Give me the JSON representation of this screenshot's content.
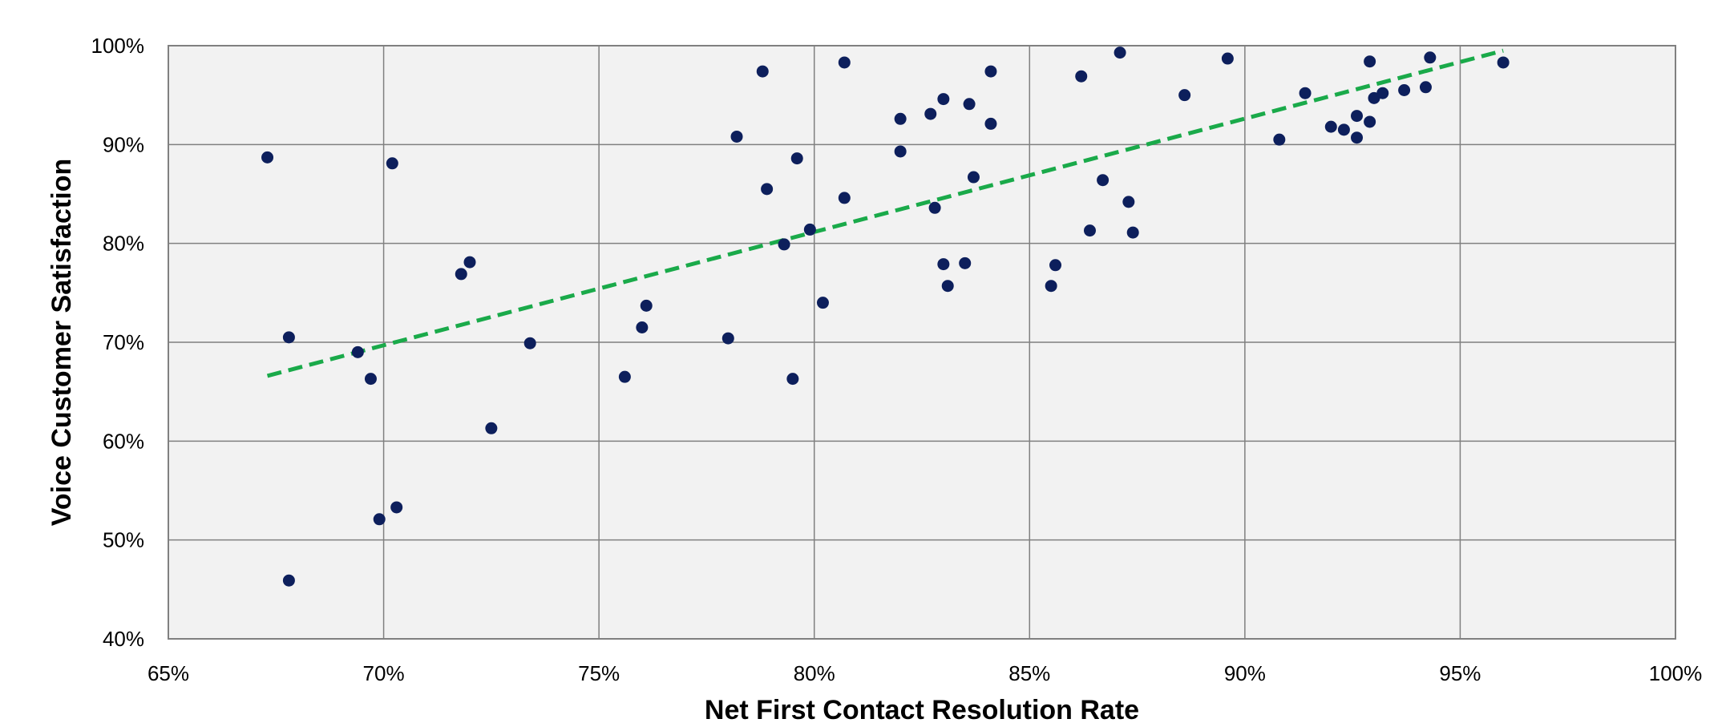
{
  "chart_data": {
    "type": "scatter",
    "title": "",
    "xlabel": "Net First Contact Resolution Rate",
    "ylabel": "Voice Customer Satisfaction",
    "xlim": [
      65,
      100
    ],
    "ylim": [
      40,
      100
    ],
    "x_ticks": [
      65,
      70,
      75,
      80,
      85,
      90,
      95,
      100
    ],
    "y_ticks": [
      40,
      50,
      60,
      70,
      80,
      90,
      100
    ],
    "x_tick_labels": [
      "65%",
      "70%",
      "75%",
      "80%",
      "85%",
      "90%",
      "95%",
      "100%"
    ],
    "y_tick_labels": [
      "40%",
      "50%",
      "60%",
      "70%",
      "80%",
      "90%",
      "100%"
    ],
    "grid": true,
    "legend": "none",
    "colors": {
      "points": "#0d1f5c",
      "trendline": "#1aaa4a",
      "plot_background": "#f2f2f2",
      "gridlines": "#808080"
    },
    "series": [
      {
        "points": [
          [
            67.3,
            88.7
          ],
          [
            67.8,
            70.5
          ],
          [
            67.8,
            45.9
          ],
          [
            69.4,
            69.0
          ],
          [
            69.7,
            66.3
          ],
          [
            69.9,
            52.1
          ],
          [
            70.2,
            88.1
          ],
          [
            70.3,
            53.3
          ],
          [
            71.8,
            76.9
          ],
          [
            72.0,
            78.1
          ],
          [
            72.5,
            61.3
          ],
          [
            73.4,
            69.9
          ],
          [
            75.6,
            66.5
          ],
          [
            76.0,
            71.5
          ],
          [
            76.1,
            73.7
          ],
          [
            78.0,
            70.4
          ],
          [
            78.2,
            90.8
          ],
          [
            78.8,
            97.4
          ],
          [
            78.9,
            85.5
          ],
          [
            79.3,
            79.9
          ],
          [
            79.5,
            66.3
          ],
          [
            79.6,
            88.6
          ],
          [
            79.9,
            81.4
          ],
          [
            80.2,
            74.0
          ],
          [
            80.7,
            98.3
          ],
          [
            80.7,
            84.6
          ],
          [
            82.0,
            92.6
          ],
          [
            82.0,
            89.3
          ],
          [
            82.7,
            93.1
          ],
          [
            82.8,
            83.6
          ],
          [
            83.0,
            94.6
          ],
          [
            83.0,
            77.9
          ],
          [
            83.1,
            75.7
          ],
          [
            83.5,
            78.0
          ],
          [
            83.6,
            94.1
          ],
          [
            83.7,
            86.7
          ],
          [
            84.1,
            97.4
          ],
          [
            84.1,
            92.1
          ],
          [
            85.5,
            75.7
          ],
          [
            85.6,
            77.8
          ],
          [
            86.2,
            96.9
          ],
          [
            86.4,
            81.3
          ],
          [
            86.7,
            86.4
          ],
          [
            87.1,
            99.3
          ],
          [
            87.3,
            84.2
          ],
          [
            87.4,
            81.1
          ],
          [
            88.6,
            95.0
          ],
          [
            89.6,
            98.7
          ],
          [
            90.8,
            90.5
          ],
          [
            91.4,
            95.2
          ],
          [
            92.0,
            91.8
          ],
          [
            92.3,
            91.5
          ],
          [
            92.6,
            92.9
          ],
          [
            92.6,
            90.7
          ],
          [
            92.9,
            98.4
          ],
          [
            92.9,
            92.3
          ],
          [
            93.0,
            94.7
          ],
          [
            93.2,
            95.2
          ],
          [
            93.7,
            95.5
          ],
          [
            94.2,
            95.8
          ],
          [
            94.3,
            98.8
          ],
          [
            96.0,
            98.3
          ]
        ]
      }
    ],
    "trendline": {
      "x": [
        67.3,
        96.0
      ],
      "y": [
        66.6,
        99.5
      ]
    }
  }
}
